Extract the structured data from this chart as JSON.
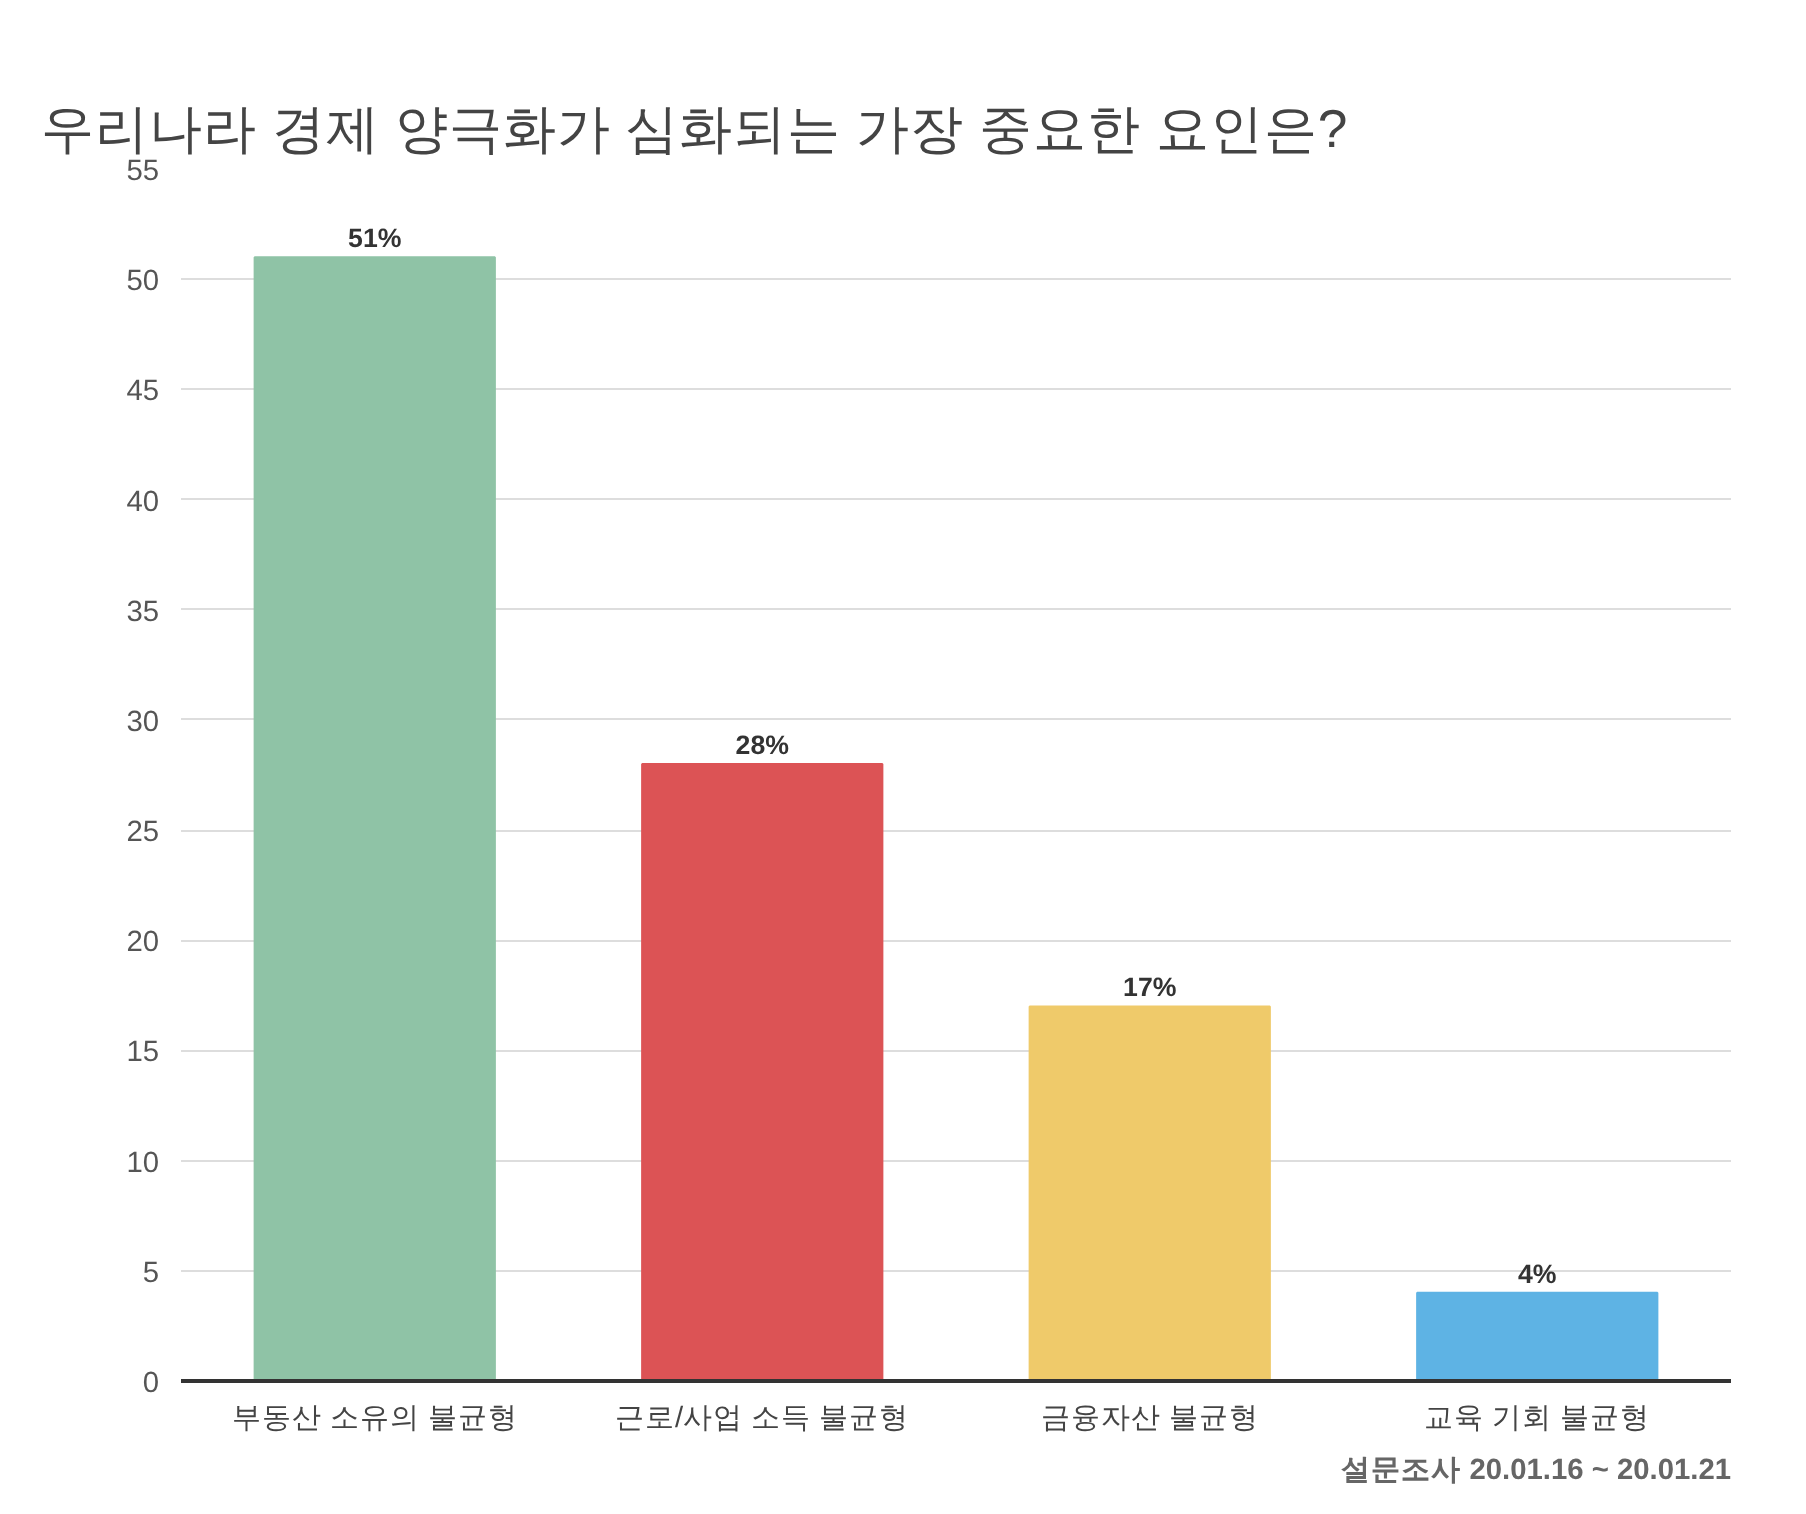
{
  "chart_data": {
    "type": "bar",
    "title": "우리나라 경제 양극화가 심화되는 가장 중요한 요인은?",
    "categories": [
      "부동산 소유의 불균형",
      "근로/사업 소득 불균형",
      "금융자산 불균형",
      "교육 기회 불균형"
    ],
    "values": [
      51,
      28,
      17,
      4
    ],
    "colors": [
      "#8fc3a6",
      "#dc5355",
      "#efca6a",
      "#5eb3e4"
    ],
    "value_labels": [
      "51%",
      "28%",
      "17%",
      "4%"
    ],
    "ylim": [
      0,
      55
    ],
    "yticks": [
      0,
      5,
      10,
      15,
      20,
      25,
      30,
      35,
      40,
      45,
      50,
      55
    ],
    "grid": "y",
    "annotations": [
      "설문조사 20.01.16 ~ 20.01.21"
    ]
  }
}
